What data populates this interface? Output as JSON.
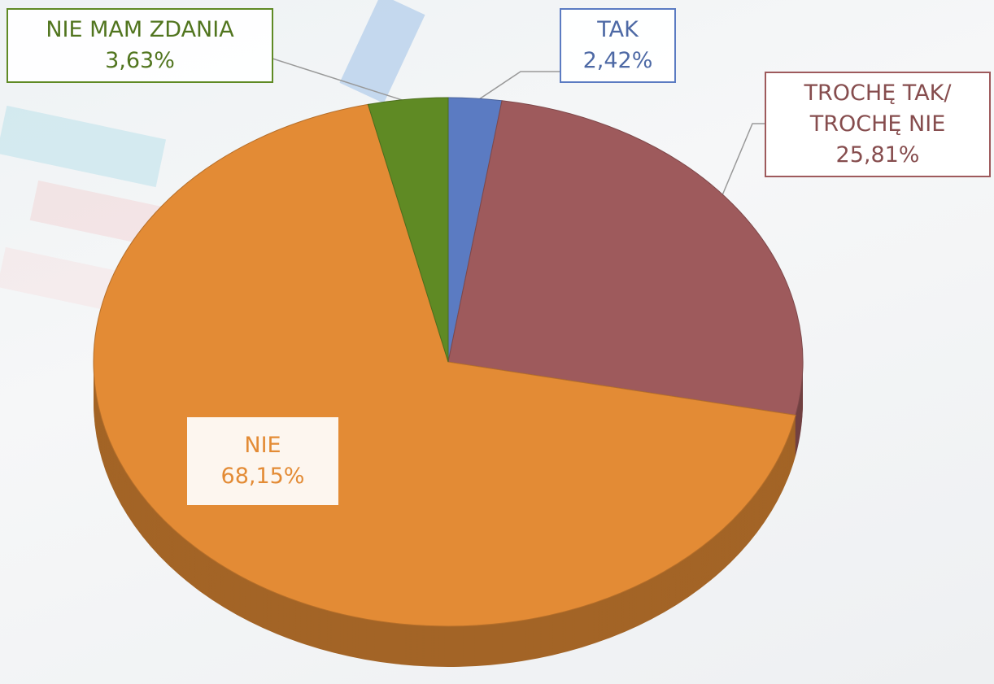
{
  "chart_data": {
    "type": "pie",
    "categories": [
      "TAK",
      "TROCHĘ TAK/ TROCHĘ NIE",
      "NIE",
      "NIE MAM ZDANIA"
    ],
    "values": [
      2.42,
      25.81,
      68.15,
      3.63
    ],
    "value_labels": [
      "2,42%",
      "25,81%",
      "68,15%",
      "3,63%"
    ],
    "colors": [
      "#5b7bc2",
      "#9e5a5c",
      "#e38b35",
      "#5f8a24"
    ]
  }
}
